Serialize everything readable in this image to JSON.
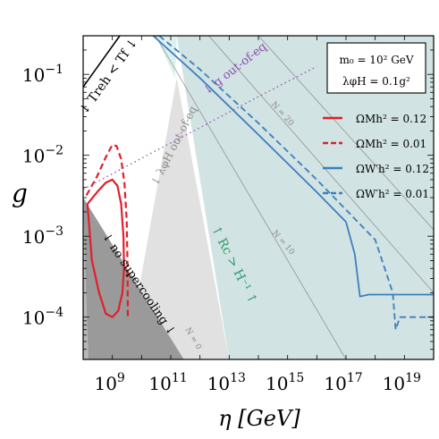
{
  "chart_data": {
    "type": "line",
    "xlabel": "η [GeV]",
    "ylabel": "g",
    "xscale": "log",
    "yscale": "log",
    "xlim": [
      100000000.0,
      1e+20
    ],
    "ylim": [
      3e-05,
      0.3
    ],
    "xticks": [
      {
        "value": 1000000000.0,
        "label": "10",
        "exp": "9"
      },
      {
        "value": 100000000000.0,
        "label": "10",
        "exp": "11"
      },
      {
        "value": 10000000000000.0,
        "label": "10",
        "exp": "13"
      },
      {
        "value": 1000000000000000.0,
        "label": "10",
        "exp": "15"
      },
      {
        "value": 1e+17,
        "label": "10",
        "exp": "17"
      },
      {
        "value": 1e+19,
        "label": "10",
        "exp": "19"
      }
    ],
    "yticks": [
      {
        "value": 0.0001,
        "label": "10",
        "exp": "−4"
      },
      {
        "value": 0.001,
        "label": "10",
        "exp": "−3"
      },
      {
        "value": 0.01,
        "label": "10",
        "exp": "−2"
      },
      {
        "value": 0.1,
        "label": "10",
        "exp": "−1"
      }
    ],
    "parameter_box": {
      "line1": "m₀ = 10² GeV",
      "line2": "λφH = 0.1g²"
    },
    "legend_placement": "right",
    "series": [
      {
        "name": "ΩMh² = 0.12",
        "color": "#e0202a",
        "dash": "solid",
        "x": [
          140000000.0,
          300000000.0,
          600000000.0,
          1000000000.0,
          1500000000.0,
          2000000000.0,
          2400000000.0,
          2500000000.0,
          2200000000.0,
          1600000000.0,
          1000000000.0,
          600000000.0,
          350000000.0,
          200000000.0,
          140000000.0
        ],
        "y": [
          0.0025,
          0.0035,
          0.0046,
          0.005,
          0.0042,
          0.0025,
          0.001,
          0.0004,
          0.0002,
          0.00012,
          0.0001,
          0.00011,
          0.0002,
          0.0005,
          0.0025
        ]
      },
      {
        "name": "ΩMh² = 0.01",
        "color": "#e0202a",
        "dash": "dashed",
        "x": [
          130000000.0,
          300000000.0,
          600000000.0,
          1000000000.0,
          1400000000.0,
          2000000000.0,
          2600000000.0,
          3100000000.0,
          3300000000.0,
          3400000000.0
        ],
        "y": [
          0.0032,
          0.0055,
          0.0095,
          0.0135,
          0.013,
          0.009,
          0.0045,
          0.0016,
          0.00045,
          0.0001
        ]
      },
      {
        "name": "ΩW′h² = 0.12",
        "color": "#3d7fbf",
        "dash": "solid",
        "x": [
          25000000000.0,
          1000000000000.0,
          100000000000000.0,
          1e+16,
          1e+17,
          2e+17,
          3e+17,
          6e+17,
          3e+18,
          1e+20
        ],
        "y": [
          0.3,
          0.09,
          0.018,
          0.0035,
          0.0015,
          0.0006,
          0.00018,
          0.00019,
          0.00019,
          0.00019
        ]
      },
      {
        "name": "ΩW′h² = 0.01",
        "color": "#3d7fbf",
        "dash": "dashed",
        "x": [
          40000000000.0,
          1000000000000.0,
          100000000000000.0,
          1e+16,
          1e+18,
          4e+18,
          5e+18,
          7e+18,
          1.5e+19,
          1e+20
        ],
        "y": [
          0.3,
          0.115,
          0.025,
          0.005,
          0.0009,
          0.0002,
          7e-05,
          0.0001,
          0.0001,
          0.0001
        ]
      },
      {
        "name": "g out-of-eq",
        "color": "#9a59b5",
        "dash": "dotted",
        "x": [
          100000000.0,
          10000000000.0,
          1000000000000.0,
          100000000000000.0,
          1e+16
        ],
        "y": [
          0.0038,
          0.0092,
          0.022,
          0.053,
          0.125
        ]
      }
    ],
    "regions": [
      {
        "name": "Rc > H⁻¹",
        "color": "#c9dedd",
        "opacity": 0.85,
        "x": [
          10000000000000.0,
          1e+20,
          1e+20,
          160000000000.0
        ],
        "y": [
          3e-05,
          3e-05,
          0.3,
          0.3
        ]
      },
      {
        "name": "upper-strip",
        "color": "#d8efec",
        "opacity": 0.9,
        "x": [
          160000000000.0,
          30000000000.0,
          140000000000.0
        ],
        "y": [
          0.3,
          0.3,
          0.09
        ]
      },
      {
        "name": "λφH out-of-eq",
        "color": "#dcdcdc",
        "opacity": 0.85,
        "x": [
          3000000000.0,
          160000000000.0,
          10000000000000.0,
          300000000000.0
        ],
        "y": [
          3e-05,
          0.09,
          3e-05,
          3e-05
        ]
      },
      {
        "name": "no supercooling",
        "color": "#9a9a9a",
        "opacity": 1,
        "x": [
          100000000.0,
          280000000000.0,
          100000000.0
        ],
        "y": [
          0.003,
          3e-05,
          3e-05
        ]
      },
      {
        "name": "no-supercooling-shade",
        "color": "#b8b8b8",
        "opacity": 1,
        "x": [
          100000000.0,
          150000000.0,
          100000000.0
        ],
        "y": [
          0.003,
          3e-05,
          3e-05
        ]
      },
      {
        "name": "Treh < Tf",
        "color": "#ffffff",
        "opacity": 1,
        "x": [
          100000000.0,
          1800000000.0,
          100000000.0
        ],
        "y": [
          0.3,
          0.3,
          0.07
        ]
      }
    ],
    "reference_lines": [
      {
        "label": "N = 20",
        "x": [
          100000000000000.0,
          1e+20
        ],
        "y": [
          0.3,
          0.0012
        ]
      },
      {
        "label": "N = 10",
        "x": [
          2000000000000.0,
          1e+20
        ],
        "y": [
          0.3,
          0.0002
        ]
      },
      {
        "label": "N = 0",
        "x": [
          30000000000.0,
          1e+17
        ],
        "y": [
          0.3,
          3e-05
        ]
      },
      {
        "label": "Treh < Tf",
        "x": [
          100000000.0,
          1800000000.0
        ],
        "y": [
          0.07,
          0.3
        ]
      }
    ],
    "annotations": [
      {
        "text": "↓ Treh < Tf ↓"
      },
      {
        "text": "↓ g out-of-eq"
      },
      {
        "text": "↓ λφH out-of-eq"
      },
      {
        "text": "↑ Rc > H⁻¹ ↑"
      },
      {
        "text": "↓ no supercooling ↓"
      },
      {
        "text": "N = 20"
      },
      {
        "text": "N = 10"
      },
      {
        "text": "N = 0"
      }
    ]
  }
}
